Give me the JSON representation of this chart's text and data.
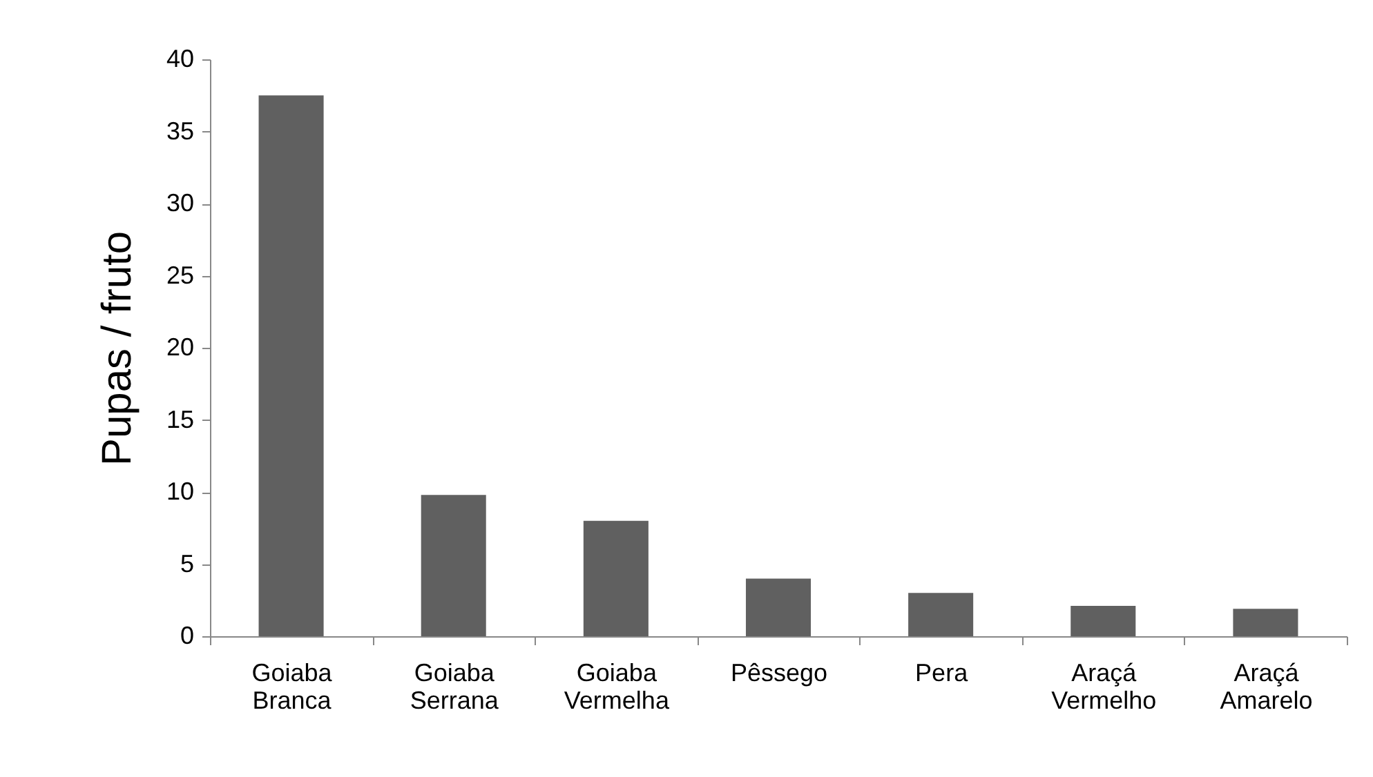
{
  "chart_data": {
    "type": "bar",
    "ylabel": "Pupas / fruto",
    "categories": [
      "Goiaba Branca",
      "Goiaba Serrana",
      "Goiaba Vermelha",
      "Pêssego",
      "Pera",
      "Araçá Vermelho",
      "Araçá Amarelo"
    ],
    "values": [
      37.5,
      9.8,
      8.0,
      4.0,
      3.0,
      2.1,
      1.9
    ],
    "color": "#606060",
    "ylim": [
      0,
      40
    ],
    "yticks": [
      0,
      5,
      10,
      15,
      20,
      25,
      30,
      35,
      40
    ],
    "grid": false
  }
}
